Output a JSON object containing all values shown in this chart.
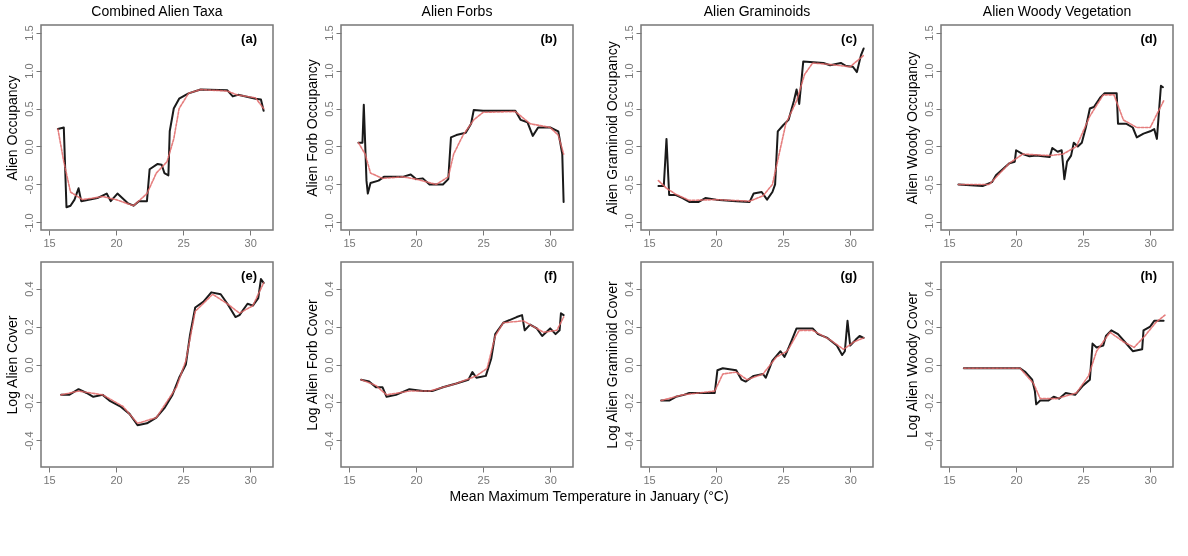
{
  "chart_data": [
    {
      "type": "line",
      "title": "Combined Alien Taxa",
      "ylabel": "Alien Occupancy",
      "annotations": [
        "(a)"
      ],
      "xlim": [
        14.4,
        31.7
      ],
      "xticks": [
        15,
        20,
        25,
        30
      ],
      "ylim": [
        -1.1,
        1.6
      ],
      "yticks": [
        {
          "value": -1,
          "label": "-1.0"
        },
        -0.5,
        {
          "value": 0,
          "label": "0.0"
        },
        0.5,
        {
          "value": 1,
          "label": "1.0"
        },
        1.5
      ],
      "grid": false,
      "marker": "none",
      "series": [
        {
          "color": "#1a1a1a",
          "line_style": "solid",
          "x": [
            15.66,
            16.1,
            16.3,
            16.6,
            16.9,
            17.2,
            17.4,
            18.6,
            19.3,
            19.6,
            20.1,
            20.9,
            21.3,
            21.7,
            22.3,
            22.5,
            23.1,
            23.4,
            23.6,
            23.9,
            24.0,
            24.3,
            24.7,
            25.4,
            26.3,
            28.3,
            28.7,
            29.1,
            30.4,
            30.8,
            31.0
          ],
          "values": [
            0.23,
            0.25,
            -0.8,
            -0.78,
            -0.7,
            -0.55,
            -0.72,
            -0.68,
            -0.62,
            -0.72,
            -0.62,
            -0.75,
            -0.78,
            -0.72,
            -0.72,
            -0.3,
            -0.23,
            -0.24,
            -0.35,
            -0.38,
            0.2,
            0.5,
            0.63,
            0.7,
            0.75,
            0.74,
            0.66,
            0.68,
            0.63,
            0.62,
            0.47
          ]
        },
        {
          "color": "#e06666",
          "line_style": "dashed",
          "x": [
            15.66,
            16.1,
            16.6,
            17.5,
            19,
            20,
            21.3,
            22.3,
            23,
            23.8,
            24.3,
            24.7,
            25.4,
            26.3,
            28.3,
            29,
            30.4,
            31
          ],
          "values": [
            0.23,
            -0.2,
            -0.6,
            -0.7,
            -0.66,
            -0.7,
            -0.78,
            -0.62,
            -0.35,
            -0.2,
            0.1,
            0.5,
            0.7,
            0.75,
            0.73,
            0.68,
            0.64,
            0.5
          ]
        }
      ]
    },
    {
      "type": "line",
      "title": "Alien Forbs",
      "ylabel": "Alien Forb Occupancy",
      "annotations": [
        "(b)"
      ],
      "xlim": [
        14.4,
        31.7
      ],
      "xticks": [
        15,
        20,
        25,
        30
      ],
      "ylim": [
        -1.1,
        1.6
      ],
      "yticks": [
        {
          "value": -1,
          "label": "-1.0"
        },
        -0.5,
        {
          "value": 0,
          "label": "0.0"
        },
        0.5,
        {
          "value": 1,
          "label": "1.0"
        },
        1.5
      ],
      "grid": false,
      "marker": "none",
      "series": [
        {
          "color": "#1a1a1a",
          "line_style": "solid",
          "x": [
            15.7,
            16.0,
            16.1,
            16.3,
            16.4,
            16.6,
            17.2,
            17.6,
            19,
            19.6,
            20.0,
            20.5,
            21.0,
            22.0,
            22.4,
            22.6,
            23.0,
            23.7,
            24.1,
            24.3,
            25,
            27.4,
            27.8,
            28.3,
            28.7,
            29.1,
            30.0,
            30.6,
            30.9,
            31.0
          ],
          "values": [
            0.05,
            0.05,
            0.55,
            -0.45,
            -0.62,
            -0.48,
            -0.45,
            -0.4,
            -0.4,
            -0.37,
            -0.43,
            -0.42,
            -0.5,
            -0.5,
            -0.43,
            0.12,
            0.15,
            0.18,
            0.3,
            0.48,
            0.47,
            0.47,
            0.35,
            0.32,
            0.14,
            0.25,
            0.25,
            0.2,
            -0.1,
            -0.73
          ]
        },
        {
          "color": "#e06666",
          "line_style": "dashed",
          "x": [
            15.7,
            16.2,
            16.6,
            17.5,
            19,
            20,
            21.5,
            22.4,
            22.8,
            23.5,
            24.3,
            25,
            27.4,
            28.5,
            30,
            30.6,
            31
          ],
          "values": [
            0.05,
            -0.1,
            -0.35,
            -0.42,
            -0.4,
            -0.43,
            -0.5,
            -0.4,
            -0.1,
            0.15,
            0.35,
            0.45,
            0.46,
            0.3,
            0.25,
            0.15,
            -0.1
          ]
        }
      ]
    },
    {
      "type": "line",
      "title": "Alien Graminoids",
      "ylabel": "Alien Graminoid Occupancy",
      "annotations": [
        "(c)"
      ],
      "xlim": [
        14.4,
        31.7
      ],
      "xticks": [
        15,
        20,
        25,
        30
      ],
      "ylim": [
        -1.1,
        1.6
      ],
      "yticks": [
        {
          "value": -1,
          "label": "-1.0"
        },
        -0.5,
        {
          "value": 0,
          "label": "0.0"
        },
        0.5,
        {
          "value": 1,
          "label": "1.0"
        },
        1.5
      ],
      "grid": false,
      "marker": "none",
      "series": [
        {
          "color": "#1a1a1a",
          "line_style": "solid",
          "x": [
            15.7,
            16.1,
            16.3,
            16.5,
            17.0,
            17.5,
            18,
            18.7,
            19.2,
            20,
            21.5,
            22.5,
            22.8,
            23.4,
            23.8,
            24.2,
            24.4,
            24.6,
            25.0,
            25.4,
            25.8,
            26.0,
            26.2,
            26.5,
            28.0,
            28.5,
            29.3,
            29.7,
            30.2,
            30.5,
            30.8,
            31
          ],
          "values": [
            -0.52,
            -0.52,
            0.1,
            -0.64,
            -0.64,
            -0.68,
            -0.73,
            -0.73,
            -0.68,
            -0.7,
            -0.72,
            -0.73,
            -0.62,
            -0.6,
            -0.7,
            -0.6,
            -0.5,
            0.2,
            0.28,
            0.35,
            0.6,
            0.75,
            0.56,
            1.12,
            1.1,
            1.07,
            1.1,
            1.06,
            1.05,
            0.98,
            1.2,
            1.29
          ]
        },
        {
          "color": "#e06666",
          "line_style": "dashed",
          "x": [
            15.7,
            16.3,
            17,
            18,
            20,
            22.5,
            23.5,
            24.2,
            24.7,
            25.2,
            26,
            26.6,
            27.2,
            28.5,
            30,
            31
          ],
          "values": [
            -0.45,
            -0.55,
            -0.63,
            -0.71,
            -0.7,
            -0.72,
            -0.65,
            -0.5,
            -0.1,
            0.3,
            0.6,
            0.95,
            1.1,
            1.08,
            1.05,
            1.2
          ]
        }
      ]
    },
    {
      "type": "line",
      "title": "Alien Woody Vegetation",
      "ylabel": "Alien Woody Occupancy",
      "annotations": [
        "(d)"
      ],
      "xlim": [
        14.4,
        31.7
      ],
      "xticks": [
        15,
        20,
        25,
        30
      ],
      "ylim": [
        -1.1,
        1.6
      ],
      "yticks": [
        {
          "value": -1,
          "label": "-1.0"
        },
        -0.5,
        {
          "value": 0,
          "label": "0.0"
        },
        0.5,
        {
          "value": 1,
          "label": "1.0"
        },
        1.5
      ],
      "grid": false,
      "marker": "none",
      "series": [
        {
          "color": "#1a1a1a",
          "line_style": "solid",
          "x": [
            15.7,
            17.5,
            18.2,
            18.5,
            19.5,
            19.9,
            20.0,
            20.5,
            21,
            21.5,
            22.5,
            22.7,
            23.1,
            23.4,
            23.6,
            23.8,
            24.1,
            24.3,
            24.6,
            24.9,
            25.2,
            25.5,
            25.8,
            26.3,
            26.6,
            27.5,
            27.6,
            28.2,
            28.7,
            29.0,
            29.5,
            30.0,
            30.3,
            30.5,
            30.8,
            30.95
          ],
          "values": [
            -0.5,
            -0.52,
            -0.47,
            -0.38,
            -0.22,
            -0.2,
            -0.05,
            -0.1,
            -0.13,
            -0.12,
            -0.14,
            -0.02,
            -0.07,
            -0.05,
            -0.43,
            -0.2,
            -0.12,
            0.05,
            0.0,
            0.05,
            0.25,
            0.5,
            0.52,
            0.65,
            0.7,
            0.7,
            0.3,
            0.3,
            0.25,
            0.12,
            0.17,
            0.2,
            0.23,
            0.1,
            0.8,
            0.78
          ]
        },
        {
          "color": "#e06666",
          "line_style": "dashed",
          "x": [
            15.7,
            18,
            19.5,
            20.5,
            22.5,
            23.5,
            24.5,
            25.5,
            26.5,
            27.3,
            28,
            29,
            30,
            31
          ],
          "values": [
            -0.5,
            -0.5,
            -0.22,
            -0.1,
            -0.12,
            -0.1,
            0.0,
            0.4,
            0.68,
            0.68,
            0.35,
            0.25,
            0.25,
            0.6
          ]
        }
      ]
    },
    {
      "type": "line",
      "ylabel": "Log Alien Cover",
      "annotations": [
        "(e)"
      ],
      "xlim": [
        14.4,
        31.7
      ],
      "xticks": [
        15,
        20,
        25,
        30
      ],
      "ylim": [
        -0.54,
        0.54
      ],
      "yticks": [
        -0.4,
        -0.2,
        {
          "value": 0,
          "label": "0.0"
        },
        0.2,
        0.4
      ],
      "grid": false,
      "marker": "none",
      "series": [
        {
          "color": "#1a1a1a",
          "line_style": "solid",
          "x": [
            15.9,
            16.5,
            17.2,
            17.8,
            18.3,
            19,
            19.5,
            20.3,
            21,
            21.3,
            21.6,
            22.3,
            23,
            23.6,
            24.2,
            24.7,
            25.2,
            25.5,
            25.9,
            26.5,
            27.1,
            27.8,
            28.3,
            28.9,
            29.2,
            29.8,
            30.2,
            30.6,
            30.8,
            31.0
          ],
          "values": [
            -0.16,
            -0.16,
            -0.13,
            -0.15,
            -0.17,
            -0.16,
            -0.19,
            -0.22,
            -0.26,
            -0.29,
            -0.32,
            -0.31,
            -0.28,
            -0.23,
            -0.16,
            -0.07,
            0.0,
            0.15,
            0.3,
            0.33,
            0.38,
            0.37,
            0.32,
            0.25,
            0.26,
            0.32,
            0.31,
            0.35,
            0.45,
            0.43
          ]
        },
        {
          "color": "#e06666",
          "line_style": "dashed",
          "x": [
            15.9,
            17.2,
            19,
            20.5,
            21.6,
            23,
            24.5,
            25.2,
            25.9,
            27.2,
            28.3,
            29.2,
            30.2,
            31
          ],
          "values": [
            -0.16,
            -0.14,
            -0.16,
            -0.22,
            -0.31,
            -0.28,
            -0.12,
            0.02,
            0.28,
            0.37,
            0.32,
            0.27,
            0.31,
            0.43
          ]
        }
      ]
    },
    {
      "type": "line",
      "ylabel": "Log Alien Forb Cover",
      "xlabel": "Mean Maximum Temperature in January (°C)",
      "annotations": [
        "(f)"
      ],
      "xlim": [
        14.4,
        31.7
      ],
      "xticks": [
        15,
        20,
        25,
        30
      ],
      "ylim": [
        -0.54,
        0.54
      ],
      "yticks": [
        -0.4,
        -0.2,
        {
          "value": 0,
          "label": "0.0"
        },
        0.2,
        0.4
      ],
      "grid": false,
      "marker": "none",
      "series": [
        {
          "color": "#1a1a1a",
          "line_style": "solid",
          "x": [
            15.9,
            16.5,
            17,
            17.5,
            17.8,
            18.5,
            19.5,
            20.5,
            21.2,
            22,
            23,
            23.9,
            24.2,
            24.5,
            25.2,
            25.6,
            25.9,
            26.5,
            27.5,
            27.9,
            28.1,
            28.5,
            29,
            29.4,
            30,
            30.4,
            30.7,
            30.8,
            31.0
          ],
          "values": [
            -0.08,
            -0.09,
            -0.12,
            -0.12,
            -0.17,
            -0.16,
            -0.13,
            -0.14,
            -0.14,
            -0.12,
            -0.1,
            -0.08,
            -0.04,
            -0.07,
            -0.06,
            0.03,
            0.16,
            0.22,
            0.25,
            0.26,
            0.18,
            0.21,
            0.19,
            0.15,
            0.19,
            0.16,
            0.18,
            0.27,
            0.26
          ]
        },
        {
          "color": "#e06666",
          "line_style": "dashed",
          "x": [
            15.9,
            17,
            17.8,
            19.5,
            21,
            23,
            24.5,
            25.3,
            25.9,
            26.5,
            28,
            29.5,
            30.5,
            31
          ],
          "values": [
            -0.08,
            -0.11,
            -0.16,
            -0.14,
            -0.14,
            -0.1,
            -0.06,
            -0.02,
            0.15,
            0.22,
            0.23,
            0.17,
            0.18,
            0.25
          ]
        }
      ]
    },
    {
      "type": "line",
      "ylabel": "Log Alien Graminoid Cover",
      "annotations": [
        "(g)"
      ],
      "xlim": [
        14.4,
        31.7
      ],
      "xticks": [
        15,
        20,
        25,
        30
      ],
      "ylim": [
        -0.54,
        0.54
      ],
      "yticks": [
        -0.4,
        -0.2,
        {
          "value": 0,
          "label": "0.0"
        },
        0.2,
        0.4
      ],
      "grid": false,
      "marker": "none",
      "series": [
        {
          "color": "#1a1a1a",
          "line_style": "solid",
          "x": [
            15.9,
            16.5,
            17,
            17.6,
            18,
            19,
            19.9,
            20.1,
            20.5,
            21.5,
            21.9,
            22.2,
            22.8,
            23.5,
            23.7,
            24.2,
            24.8,
            25.1,
            25.3,
            25.6,
            26,
            27.2,
            27.6,
            28.3,
            29,
            29.4,
            29.6,
            29.8,
            30.0,
            30.4,
            30.7,
            31
          ],
          "values": [
            -0.19,
            -0.19,
            -0.17,
            -0.16,
            -0.15,
            -0.15,
            -0.15,
            -0.03,
            -0.02,
            -0.03,
            -0.08,
            -0.09,
            -0.06,
            -0.05,
            -0.07,
            0.02,
            0.07,
            0.04,
            0.07,
            0.12,
            0.19,
            0.19,
            0.16,
            0.14,
            0.1,
            0.05,
            0.07,
            0.23,
            0.1,
            0.13,
            0.15,
            0.14
          ]
        },
        {
          "color": "#e06666",
          "line_style": "dashed",
          "x": [
            15.9,
            17.5,
            19.9,
            20.5,
            21.5,
            22.3,
            23.5,
            24.5,
            25.3,
            26.2,
            27.2,
            28.5,
            29.5,
            30.3,
            31
          ],
          "values": [
            -0.19,
            -0.16,
            -0.14,
            -0.05,
            -0.04,
            -0.08,
            -0.05,
            0.04,
            0.07,
            0.18,
            0.18,
            0.13,
            0.08,
            0.12,
            0.14
          ]
        }
      ]
    },
    {
      "type": "line",
      "ylabel": "Log Alien Woody Cover",
      "annotations": [
        "(h)"
      ],
      "xlim": [
        14.4,
        31.7
      ],
      "xticks": [
        15,
        20,
        25,
        30
      ],
      "ylim": [
        -0.54,
        0.54
      ],
      "yticks": [
        -0.4,
        -0.2,
        {
          "value": 0,
          "label": "0.0"
        },
        0.2,
        0.4
      ],
      "grid": false,
      "marker": "none",
      "series": [
        {
          "color": "#1a1a1a",
          "line_style": "solid",
          "x": [
            16.1,
            20.3,
            20.7,
            21.2,
            21.4,
            21.5,
            21.8,
            22.4,
            22.8,
            23.2,
            23.7,
            24.4,
            25,
            25.5,
            25.7,
            26.0,
            26.5,
            26.7,
            27.1,
            27.6,
            28.1,
            28.7,
            29.4,
            29.5,
            30.0,
            30.3,
            31
          ],
          "values": [
            -0.02,
            -0.02,
            -0.04,
            -0.08,
            -0.14,
            -0.21,
            -0.19,
            -0.19,
            -0.17,
            -0.18,
            -0.15,
            -0.16,
            -0.11,
            -0.08,
            0.11,
            0.09,
            0.1,
            0.15,
            0.18,
            0.16,
            0.12,
            0.07,
            0.08,
            0.18,
            0.2,
            0.23,
            0.23
          ]
        },
        {
          "color": "#e06666",
          "line_style": "dashed",
          "x": [
            16.1,
            20.3,
            21.3,
            21.8,
            23,
            24.5,
            25.4,
            26,
            27,
            28,
            28.8,
            29.6,
            30.4,
            31.1
          ],
          "values": [
            -0.02,
            -0.02,
            -0.1,
            -0.18,
            -0.18,
            -0.15,
            -0.06,
            0.07,
            0.17,
            0.12,
            0.09,
            0.15,
            0.22,
            0.26
          ]
        }
      ]
    }
  ]
}
